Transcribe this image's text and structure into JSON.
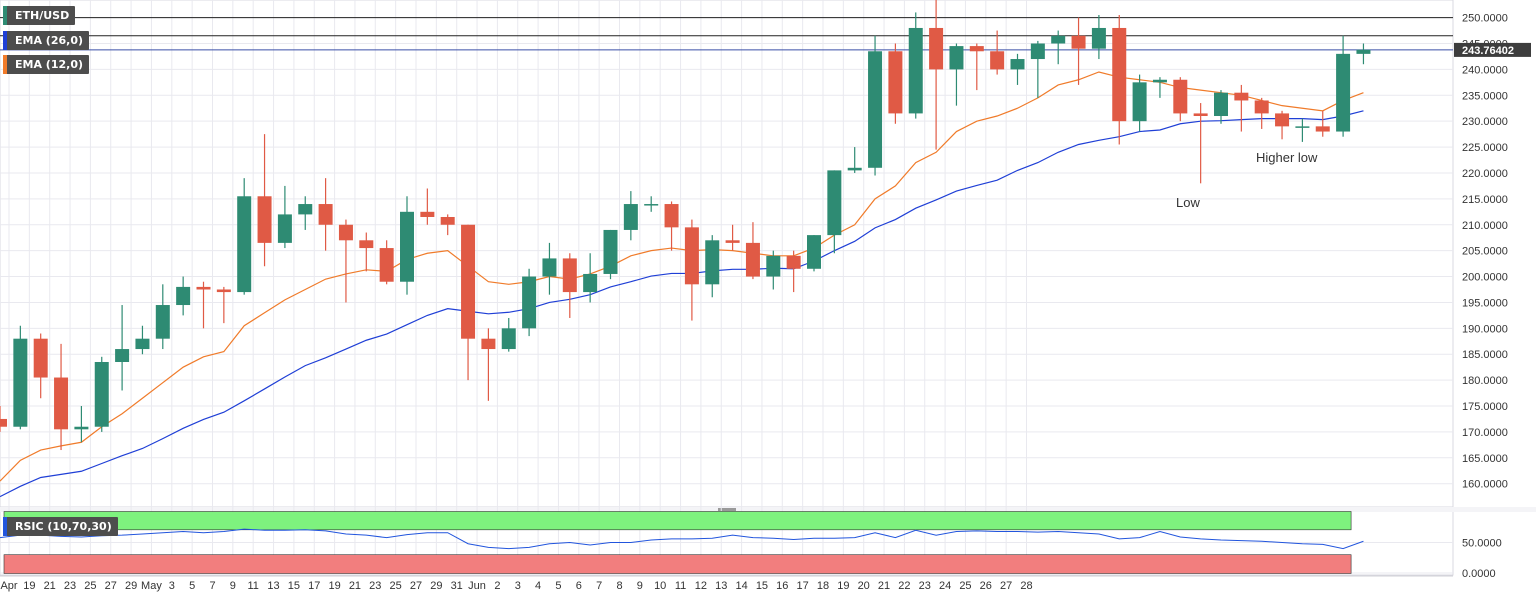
{
  "colors": {
    "up": "#2e8b73",
    "down": "#e05a45",
    "ema26": "#1f3fd6",
    "ema12": "#f07b2a",
    "rsi_band_high": "#7ef27e",
    "rsi_band_low": "#f27e7e",
    "rsi_line": "#2255dd",
    "hline": "#222222",
    "price_hline": "#3a4fa8",
    "grid": "#e9e9ef"
  },
  "legend": {
    "symbol": "ETH/USD",
    "ema26": "EMA (26,0)",
    "ema12": "EMA (12,0)",
    "rsi": "RSIC (10,70,30)"
  },
  "annotations": {
    "low": "Low",
    "higher_low": "Higher low"
  },
  "current_price_label": "243.76402",
  "chart_data": {
    "type": "candlestick",
    "price_axis": {
      "ticks": [
        "250.0000",
        "245.0000",
        "240.0000",
        "235.0000",
        "230.0000",
        "225.0000",
        "220.0000",
        "215.0000",
        "210.0000",
        "205.0000",
        "200.0000",
        "195.0000",
        "190.0000",
        "185.0000",
        "180.0000",
        "175.0000",
        "170.0000",
        "165.0000",
        "160.0000"
      ],
      "range": [
        155.5,
        253.4
      ]
    },
    "rsi_axis": {
      "ticks": [
        "50.0000",
        "0.0000"
      ],
      "range": [
        0,
        100
      ]
    },
    "horizontal_lines": [
      250.0,
      246.5
    ],
    "current_price": 243.76402,
    "x_labels": [
      "Apr",
      "19",
      "21",
      "23",
      "25",
      "27",
      "29",
      "May",
      "3",
      "5",
      "7",
      "9",
      "11",
      "13",
      "15",
      "17",
      "19",
      "21",
      "23",
      "25",
      "27",
      "29",
      "31",
      "Jun",
      "2",
      "3",
      "4",
      "5",
      "6",
      "7",
      "8",
      "9",
      "10",
      "11",
      "12",
      "13",
      "14",
      "15",
      "16",
      "17",
      "18",
      "19",
      "20",
      "21",
      "22",
      "23",
      "24",
      "25",
      "26",
      "27",
      "28"
    ],
    "candles": [
      {
        "o": 172.5,
        "h": 175,
        "l": 170,
        "c": 171
      },
      {
        "o": 171,
        "h": 190.5,
        "l": 170.5,
        "c": 188
      },
      {
        "o": 188,
        "h": 189,
        "l": 176.5,
        "c": 180.5
      },
      {
        "o": 180.5,
        "h": 187,
        "l": 166.5,
        "c": 170.5
      },
      {
        "o": 170.5,
        "h": 175,
        "l": 168,
        "c": 171
      },
      {
        "o": 171,
        "h": 184.5,
        "l": 170,
        "c": 183.5
      },
      {
        "o": 183.5,
        "h": 194.5,
        "l": 178,
        "c": 186
      },
      {
        "o": 186,
        "h": 190.5,
        "l": 185,
        "c": 188
      },
      {
        "o": 188,
        "h": 198.5,
        "l": 186,
        "c": 194.5
      },
      {
        "o": 194.5,
        "h": 200,
        "l": 192.5,
        "c": 198
      },
      {
        "o": 198,
        "h": 199,
        "l": 190,
        "c": 197.5
      },
      {
        "o": 197.5,
        "h": 198,
        "l": 191,
        "c": 197
      },
      {
        "o": 197,
        "h": 219,
        "l": 196.5,
        "c": 215.5
      },
      {
        "o": 215.5,
        "h": 227.5,
        "l": 202,
        "c": 206.5
      },
      {
        "o": 206.5,
        "h": 217.5,
        "l": 205.5,
        "c": 212
      },
      {
        "o": 212,
        "h": 215.5,
        "l": 209,
        "c": 214
      },
      {
        "o": 214,
        "h": 219,
        "l": 205,
        "c": 210
      },
      {
        "o": 210,
        "h": 211,
        "l": 195,
        "c": 207
      },
      {
        "o": 207,
        "h": 208.5,
        "l": 201,
        "c": 205.5
      },
      {
        "o": 205.5,
        "h": 207,
        "l": 198.5,
        "c": 199
      },
      {
        "o": 199,
        "h": 215.5,
        "l": 196.5,
        "c": 212.5
      },
      {
        "o": 212.5,
        "h": 217,
        "l": 210,
        "c": 211.5
      },
      {
        "o": 211.5,
        "h": 212,
        "l": 208,
        "c": 210
      },
      {
        "o": 210,
        "h": 210,
        "l": 180,
        "c": 188
      },
      {
        "o": 188,
        "h": 190,
        "l": 176,
        "c": 186
      },
      {
        "o": 186,
        "h": 192,
        "l": 185.5,
        "c": 190
      },
      {
        "o": 190,
        "h": 201.5,
        "l": 188.5,
        "c": 200
      },
      {
        "o": 200,
        "h": 206.5,
        "l": 196.5,
        "c": 203.5
      },
      {
        "o": 203.5,
        "h": 204.5,
        "l": 192,
        "c": 197
      },
      {
        "o": 197,
        "h": 204.5,
        "l": 195,
        "c": 200.5
      },
      {
        "o": 200.5,
        "h": 209,
        "l": 199.5,
        "c": 209
      },
      {
        "o": 209,
        "h": 216.5,
        "l": 207,
        "c": 214
      },
      {
        "o": 214,
        "h": 215.5,
        "l": 212.5,
        "c": 214
      },
      {
        "o": 214,
        "h": 214.5,
        "l": 205,
        "c": 209.5
      },
      {
        "o": 209.5,
        "h": 211,
        "l": 191.5,
        "c": 198.5
      },
      {
        "o": 198.5,
        "h": 208,
        "l": 196,
        "c": 207
      },
      {
        "o": 207,
        "h": 210,
        "l": 205,
        "c": 206.5
      },
      {
        "o": 206.5,
        "h": 210.5,
        "l": 199.5,
        "c": 200
      },
      {
        "o": 200,
        "h": 205,
        "l": 197.5,
        "c": 204
      },
      {
        "o": 204,
        "h": 205,
        "l": 197,
        "c": 201.5
      },
      {
        "o": 201.5,
        "h": 208,
        "l": 201,
        "c": 208
      },
      {
        "o": 208,
        "h": 220.5,
        "l": 204.5,
        "c": 220.5
      },
      {
        "o": 220.5,
        "h": 225,
        "l": 220,
        "c": 221
      },
      {
        "o": 221,
        "h": 246.5,
        "l": 219.5,
        "c": 243.5
      },
      {
        "o": 243.5,
        "h": 245,
        "l": 229.5,
        "c": 231.5
      },
      {
        "o": 231.5,
        "h": 251,
        "l": 230.5,
        "c": 248
      },
      {
        "o": 248,
        "h": 253.4,
        "l": 224.5,
        "c": 240
      },
      {
        "o": 240,
        "h": 245,
        "l": 233,
        "c": 244.5
      },
      {
        "o": 244.5,
        "h": 245,
        "l": 236,
        "c": 243.5
      },
      {
        "o": 243.5,
        "h": 247.5,
        "l": 239,
        "c": 240
      },
      {
        "o": 240,
        "h": 243,
        "l": 237,
        "c": 242
      },
      {
        "o": 242,
        "h": 245.5,
        "l": 234.5,
        "c": 245
      },
      {
        "o": 245,
        "h": 247.5,
        "l": 241,
        "c": 246.5
      },
      {
        "o": 246.5,
        "h": 250,
        "l": 237,
        "c": 244
      },
      {
        "o": 244,
        "h": 250.5,
        "l": 242,
        "c": 248
      },
      {
        "o": 248,
        "h": 250.5,
        "l": 225.5,
        "c": 230
      },
      {
        "o": 230,
        "h": 239,
        "l": 228,
        "c": 237.5
      },
      {
        "o": 237.5,
        "h": 238.5,
        "l": 234.5,
        "c": 238
      },
      {
        "o": 238,
        "h": 238.5,
        "l": 230,
        "c": 231.5
      },
      {
        "o": 231.5,
        "h": 233.5,
        "l": 218,
        "c": 231
      },
      {
        "o": 231,
        "h": 236,
        "l": 229.5,
        "c": 235.5
      },
      {
        "o": 235.5,
        "h": 237,
        "l": 228,
        "c": 234
      },
      {
        "o": 234,
        "h": 234.5,
        "l": 228.5,
        "c": 231.5
      },
      {
        "o": 231.5,
        "h": 232,
        "l": 226.5,
        "c": 229
      },
      {
        "o": 229,
        "h": 230.5,
        "l": 226,
        "c": 229
      },
      {
        "o": 229,
        "h": 232,
        "l": 227,
        "c": 228
      },
      {
        "o": 228,
        "h": 246.5,
        "l": 227,
        "c": 243
      },
      {
        "o": 243,
        "h": 245,
        "l": 241,
        "c": 243.8
      }
    ],
    "ema26": [
      157.5,
      159.5,
      161.2,
      161.8,
      162.4,
      163.9,
      165.4,
      166.8,
      168.7,
      170.7,
      172.4,
      173.8,
      176.0,
      178.3,
      180.6,
      182.8,
      184.3,
      186.0,
      187.7,
      188.9,
      190.7,
      192.5,
      193.8,
      193.3,
      192.8,
      193.1,
      193.8,
      195.0,
      195.6,
      196.5,
      198.0,
      199.0,
      200.1,
      200.6,
      200.6,
      201.1,
      201.4,
      201.4,
      201.6,
      201.5,
      203.0,
      205.0,
      206.8,
      209.4,
      211.0,
      213.2,
      214.8,
      216.5,
      217.6,
      218.6,
      220.5,
      222.0,
      224.0,
      225.5,
      226.3,
      227.0,
      228.0,
      228.3,
      229.5,
      230.0,
      230.1,
      230.3,
      230.5,
      230.5,
      230.5,
      230.3,
      231.0,
      232.0
    ],
    "ema12": [
      160.5,
      164.5,
      166.5,
      167.3,
      168.0,
      171.0,
      173.5,
      176.5,
      179.5,
      182.5,
      184.5,
      185.5,
      190.5,
      193.0,
      195.5,
      197.5,
      199.5,
      200.5,
      201.3,
      201.0,
      203.3,
      204.5,
      205.0,
      202.0,
      199.0,
      198.5,
      199.0,
      200.0,
      199.5,
      200.5,
      202.0,
      204.0,
      205.0,
      205.5,
      205.0,
      205.2,
      205.0,
      204.5,
      204.0,
      204.0,
      205.5,
      208.0,
      210.0,
      215.0,
      217.5,
      222.0,
      224.0,
      228.0,
      230.0,
      231.0,
      232.5,
      234.5,
      237.0,
      238.0,
      239.5,
      238.5,
      238.0,
      237.5,
      236.5,
      236.0,
      235.5,
      235.0,
      234.0,
      233.0,
      232.5,
      232.0,
      234.0,
      235.5
    ],
    "rsi": [
      58,
      62,
      62,
      60,
      59,
      61,
      62,
      64,
      66,
      68,
      66,
      68,
      72,
      70,
      70,
      71,
      69,
      64,
      62,
      58,
      63,
      66,
      66,
      48,
      42,
      40,
      42,
      48,
      50,
      46,
      50,
      50,
      54,
      56,
      56,
      57,
      62,
      58,
      57,
      55,
      57,
      57,
      58,
      66,
      58,
      70,
      62,
      68,
      69,
      68,
      68,
      67,
      68,
      66,
      64,
      56,
      58,
      68,
      59,
      56,
      54,
      53,
      52,
      50,
      48,
      47,
      40,
      52
    ],
    "rsi_band": {
      "high": 70,
      "low": 30
    }
  }
}
